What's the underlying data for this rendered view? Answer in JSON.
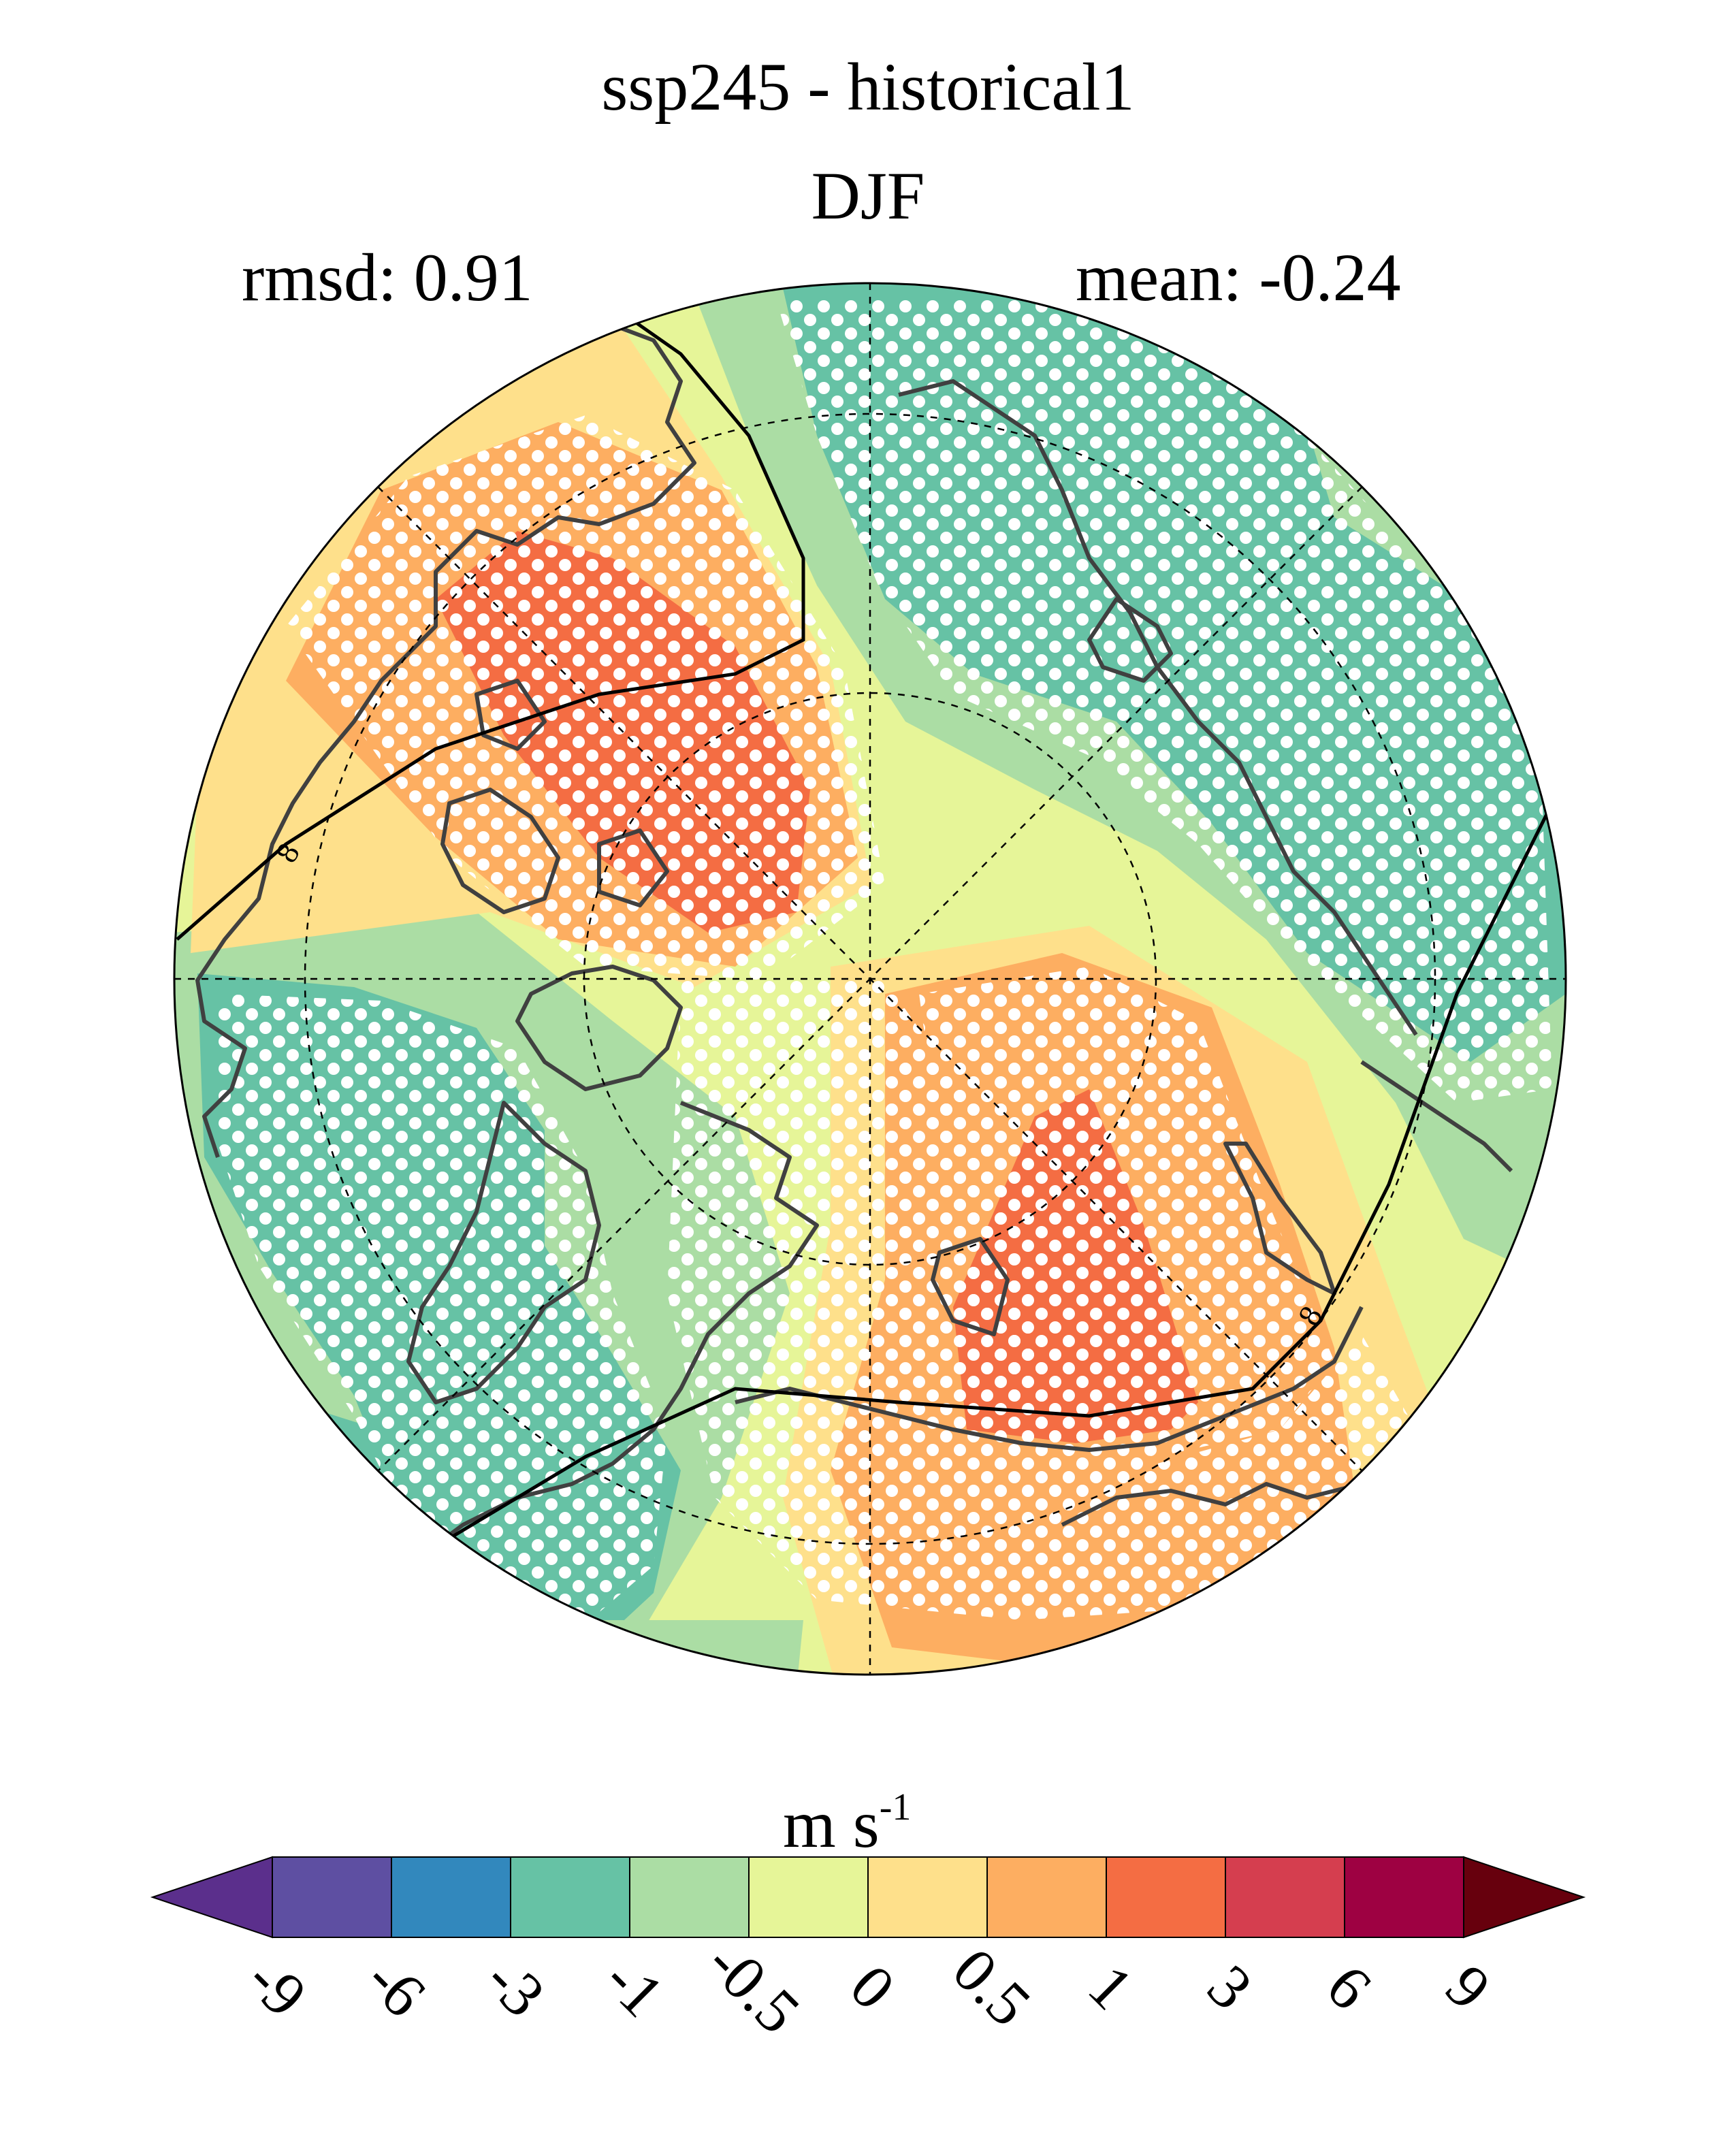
{
  "title": "ssp245 - historical1",
  "subtitle": "DJF",
  "stats": {
    "rmsd": "rmsd: 0.91",
    "mean": "mean: -0.24"
  },
  "units": {
    "base": "m s",
    "exponent": "-1"
  },
  "colorbar": {
    "levels": [
      "-9",
      "-6",
      "-3",
      "-1",
      "-0.5",
      "0",
      "0.5",
      "1",
      "3",
      "6",
      "9"
    ],
    "colors": [
      "#5e4fa2",
      "#3288bd",
      "#66c2a5",
      "#abdda4",
      "#e6f598",
      "#fee08b",
      "#fdae61",
      "#f46d43",
      "#d53e4f",
      "#9e0142"
    ],
    "under_color": "#5b2f8c",
    "over_color": "#67000d"
  },
  "map": {
    "projection": "north polar stereographic",
    "background_color": "#e6f598",
    "coastline_color": "#404040",
    "grid": "dashed lat/lon lines",
    "stippling": "white dots mark significant regions",
    "contour_label": "8"
  }
}
